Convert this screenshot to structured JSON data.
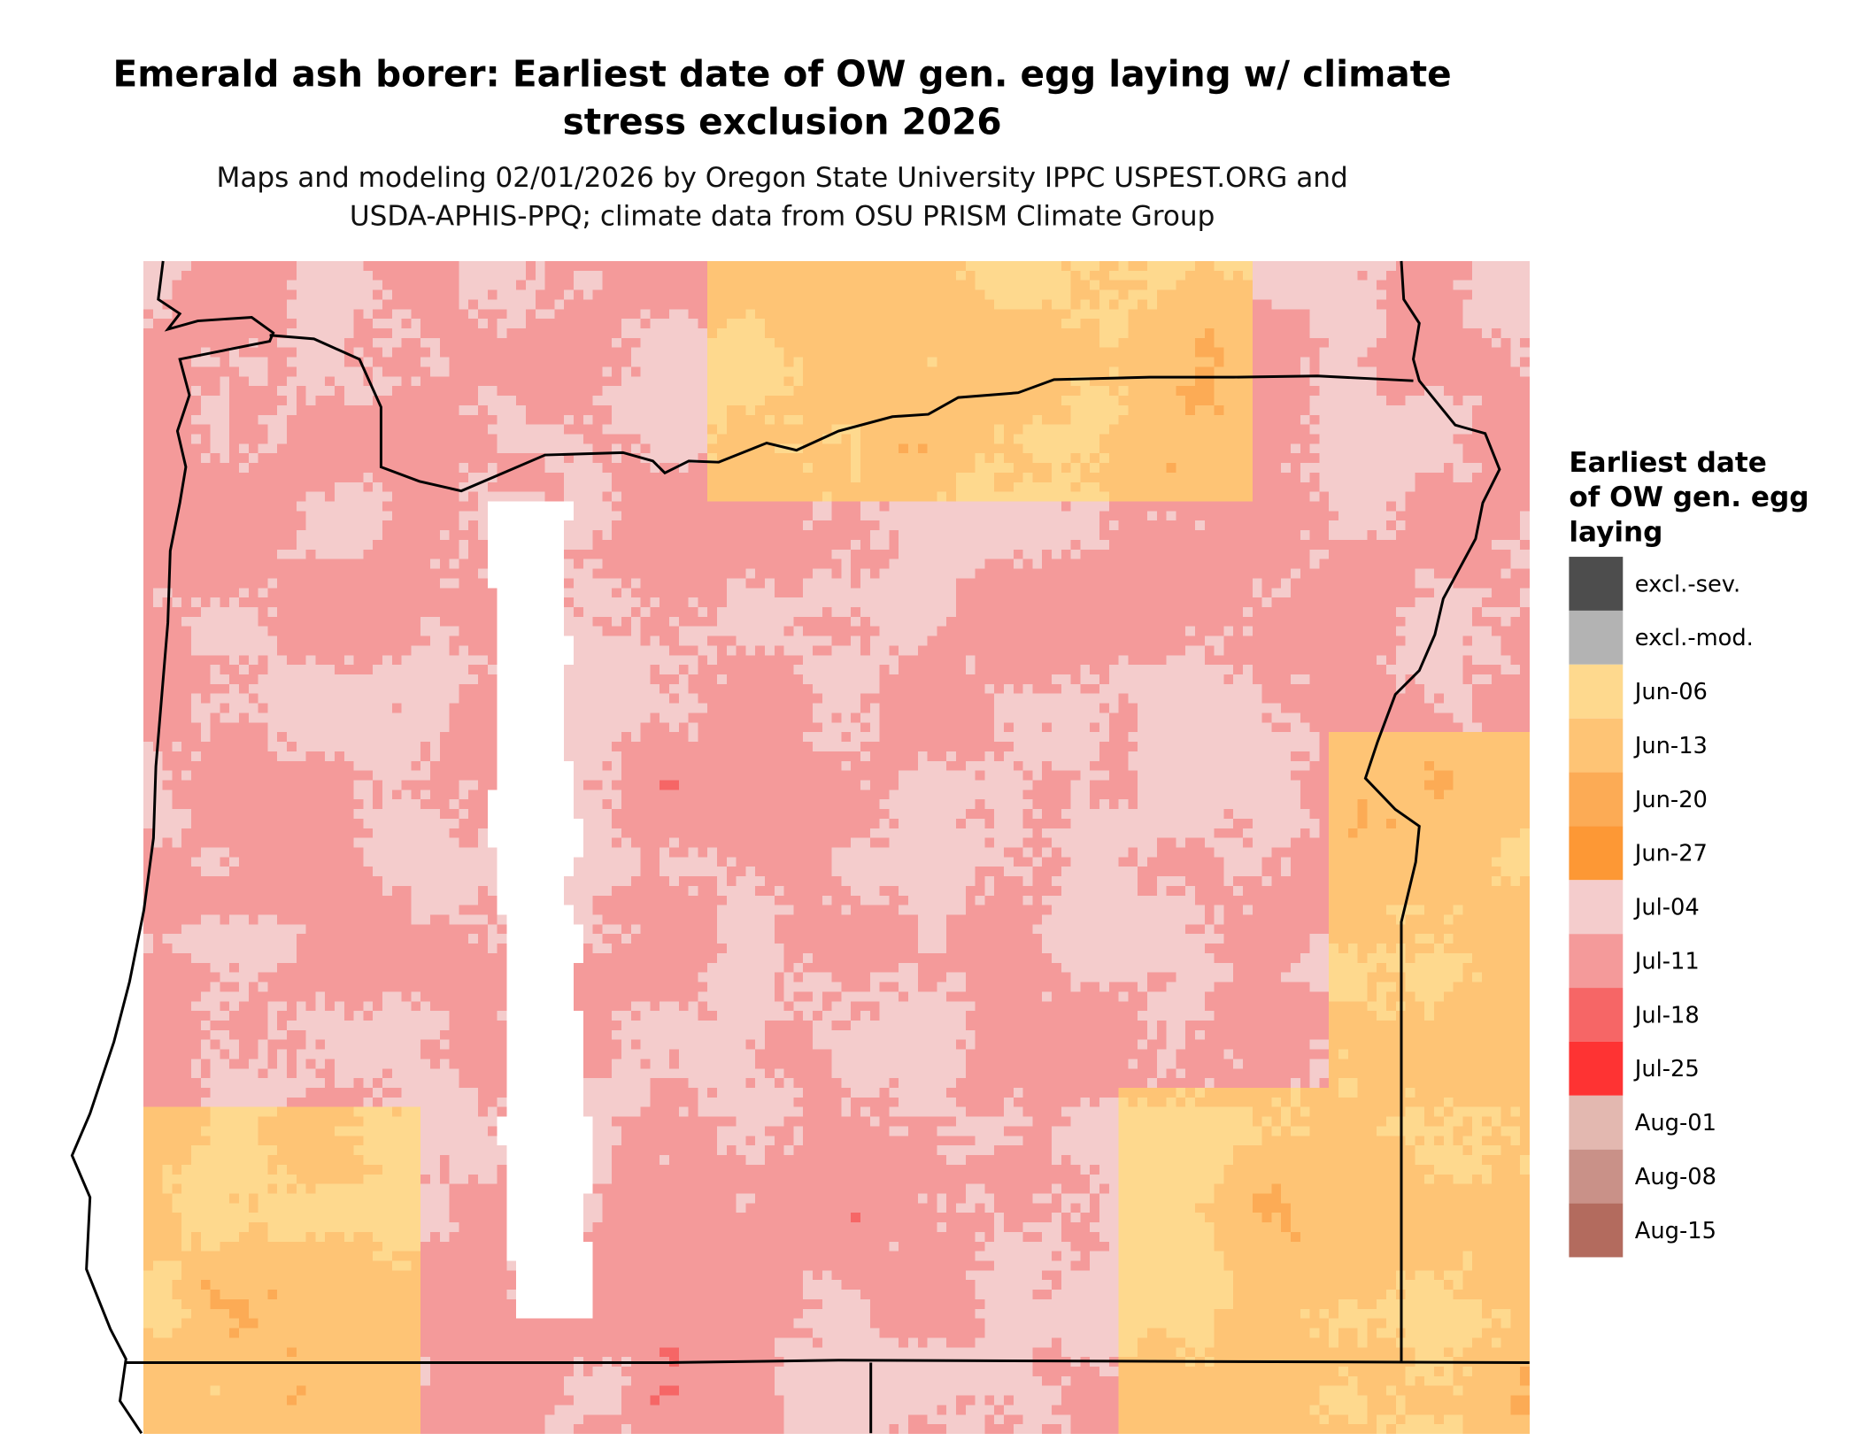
{
  "title_lines": [
    "Emerald ash borer: Earliest date of OW gen. egg laying w/ climate",
    "stress exclusion 2026"
  ],
  "subtitle_lines": [
    "Maps and modeling 02/01/2026 by Oregon State University IPPC USPEST.ORG and",
    "USDA-APHIS-PPQ; climate data from OSU PRISM Climate Group"
  ],
  "legend": {
    "title_lines": [
      "Earliest date",
      "of OW gen. egg",
      "laying"
    ],
    "items": [
      {
        "label": "excl.-sev.",
        "color": "#4d4d4d"
      },
      {
        "label": "excl.-mod.",
        "color": "#b3b3b3"
      },
      {
        "label": "Jun-06",
        "color": "#fed98e"
      },
      {
        "label": "Jun-13",
        "color": "#fec475"
      },
      {
        "label": "Jun-20",
        "color": "#fcab55"
      },
      {
        "label": "Jun-27",
        "color": "#fd9835"
      },
      {
        "label": "Jul-04",
        "color": "#f4cccc"
      },
      {
        "label": "Jul-11",
        "color": "#f49a9a"
      },
      {
        "label": "Jul-18",
        "color": "#f66666"
      },
      {
        "label": "Jul-25",
        "color": "#fe3333"
      },
      {
        "label": "Aug-01",
        "color": "#e3b8b0"
      },
      {
        "label": "Aug-08",
        "color": "#c99188"
      },
      {
        "label": "Aug-15",
        "color": "#b36b5e"
      }
    ]
  },
  "map": {
    "region": "Oregon",
    "no_data_color": "#ffffff",
    "border_color": "#000000"
  }
}
